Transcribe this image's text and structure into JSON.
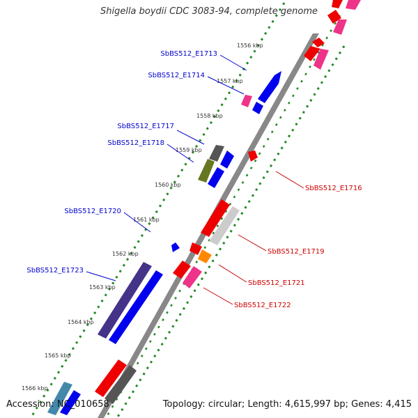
{
  "title": "Shigella boydii CDC 3083-94, complete genome",
  "accession": {
    "label": "Accession:",
    "value": "NC_010658"
  },
  "summary": {
    "topology_label": "Topology:",
    "topology": "circular",
    "length_label": "Length:",
    "length": "4,615,997 bp",
    "genes_label": "Genes:",
    "genes": "4,415"
  },
  "ruler_labels": [
    {
      "text": "1556 kbp",
      "anchor": "1556"
    },
    {
      "text": "1557 kbp",
      "anchor": "1557"
    },
    {
      "text": "1558 kbp",
      "anchor": "1558"
    },
    {
      "text": "1559 kbp",
      "anchor": "1559"
    },
    {
      "text": "1560 kbp",
      "anchor": "1560"
    },
    {
      "text": "1561 kbp",
      "anchor": "1561"
    },
    {
      "text": "1562 kbp",
      "anchor": "1562"
    },
    {
      "text": "1563 kbp",
      "anchor": "1563"
    },
    {
      "text": "1564 kbp",
      "anchor": "1564"
    },
    {
      "text": "1565 kbp",
      "anchor": "1565"
    },
    {
      "text": "1566 kbp",
      "anchor": "1566"
    }
  ],
  "gene_labels": [
    {
      "text": "SbBS512_E1713",
      "strand": "+"
    },
    {
      "text": "SbBS512_E1714",
      "strand": "+"
    },
    {
      "text": "SbBS512_E1717",
      "strand": "+"
    },
    {
      "text": "SbBS512_E1718",
      "strand": "+"
    },
    {
      "text": "SbBS512_E1720",
      "strand": "+"
    },
    {
      "text": "SbBS512_E1723",
      "strand": "+"
    },
    {
      "text": "SbBS512_E1716",
      "strand": "-"
    },
    {
      "text": "SbBS512_E1719",
      "strand": "-"
    },
    {
      "text": "SbBS512_E1721",
      "strand": "-"
    },
    {
      "text": "SbBS512_E1722",
      "strand": "-"
    }
  ],
  "colors": {
    "plus_label": "#0000cc",
    "minus_label": "#cc0000",
    "blue": "#0000ee",
    "red": "#ee0000",
    "pink": "#ee3388",
    "gray": "#555555",
    "light_gray": "#cccccc",
    "olive": "#667722",
    "navy": "#443388",
    "orange": "#ff8800",
    "steel": "#4488aa",
    "dot_green": "#228822",
    "backbone": "#888888"
  }
}
